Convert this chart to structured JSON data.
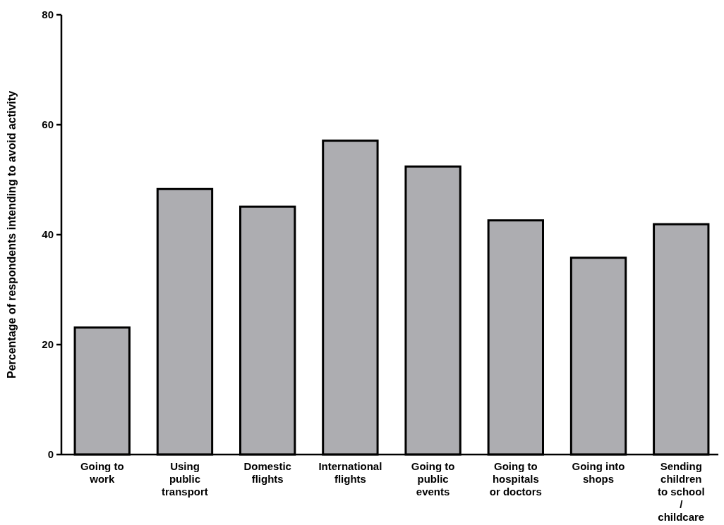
{
  "chart_data": {
    "type": "bar",
    "ylabel": "Percentage of respondents intending to avoid activity",
    "categories": [
      "Going to work",
      "Using public transport",
      "Domestic flights",
      "International flights",
      "Going to public events",
      "Going to hospitals or doctors",
      "Going into shops",
      "Sending children to school / childcare"
    ],
    "values": [
      23.1,
      48.3,
      45.1,
      57.1,
      52.4,
      42.6,
      35.8,
      41.9
    ],
    "color": "#adadb1",
    "ylim": [
      0,
      80
    ],
    "yticks": [
      0,
      20,
      40,
      60,
      80
    ],
    "grid": false
  }
}
